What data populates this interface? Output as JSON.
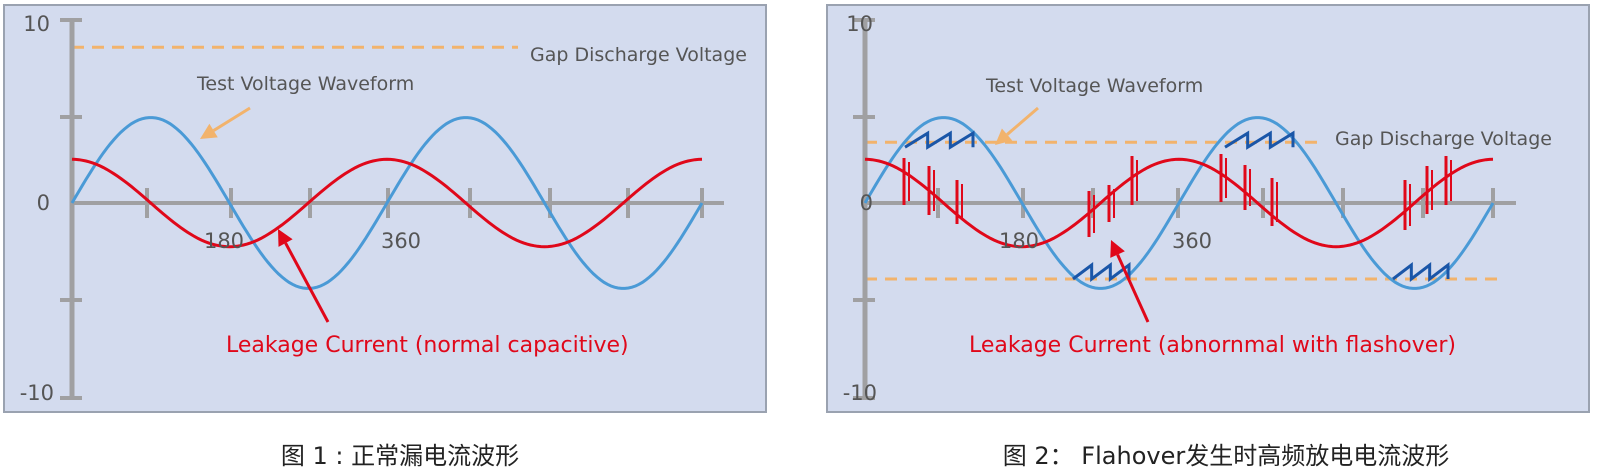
{
  "colors": {
    "panel_bg": "#d3dbee",
    "panel_border": "#9aa2b0",
    "axis": "#a0a0a2",
    "test_voltage": "#4a9ad6",
    "leakage_current": "#e0081a",
    "gap_discharge": "#f2b36c",
    "flashover_zigzag": "#1a56a8",
    "label_text": "#555555"
  },
  "panels": [
    {
      "id": "panel-1",
      "caption": "图 1 : 正常漏电流波形",
      "y_ticks": {
        "top": "10",
        "zero": "0",
        "bottom": "-10"
      },
      "x_ticks": {
        "first": "180",
        "second": "360"
      },
      "gap_discharge_label": "Gap Discharge Voltage",
      "gap_discharge_levels": [
        8.2
      ],
      "test_voltage_label": "Test Voltage Waveform",
      "leakage_label": "Leakage Current (normal capacitive)",
      "voltage_amplitude": 4.5,
      "current_amplitude": 2.3,
      "flashover": false
    },
    {
      "id": "panel-2",
      "caption": "图 2： Flahover发生时高频放电电流波形",
      "y_ticks": {
        "top": "10",
        "zero": "0",
        "bottom": "-10"
      },
      "x_ticks": {
        "first": "180",
        "second": "360"
      },
      "gap_discharge_label": "Gap Discharge Voltage",
      "gap_discharge_levels": [
        3.2,
        -4.0
      ],
      "test_voltage_label": "Test Voltage Waveform",
      "leakage_label": "Leakage Current (abnornmal with flashover)",
      "voltage_amplitude": 4.5,
      "current_amplitude": 2.3,
      "flashover": true
    }
  ]
}
